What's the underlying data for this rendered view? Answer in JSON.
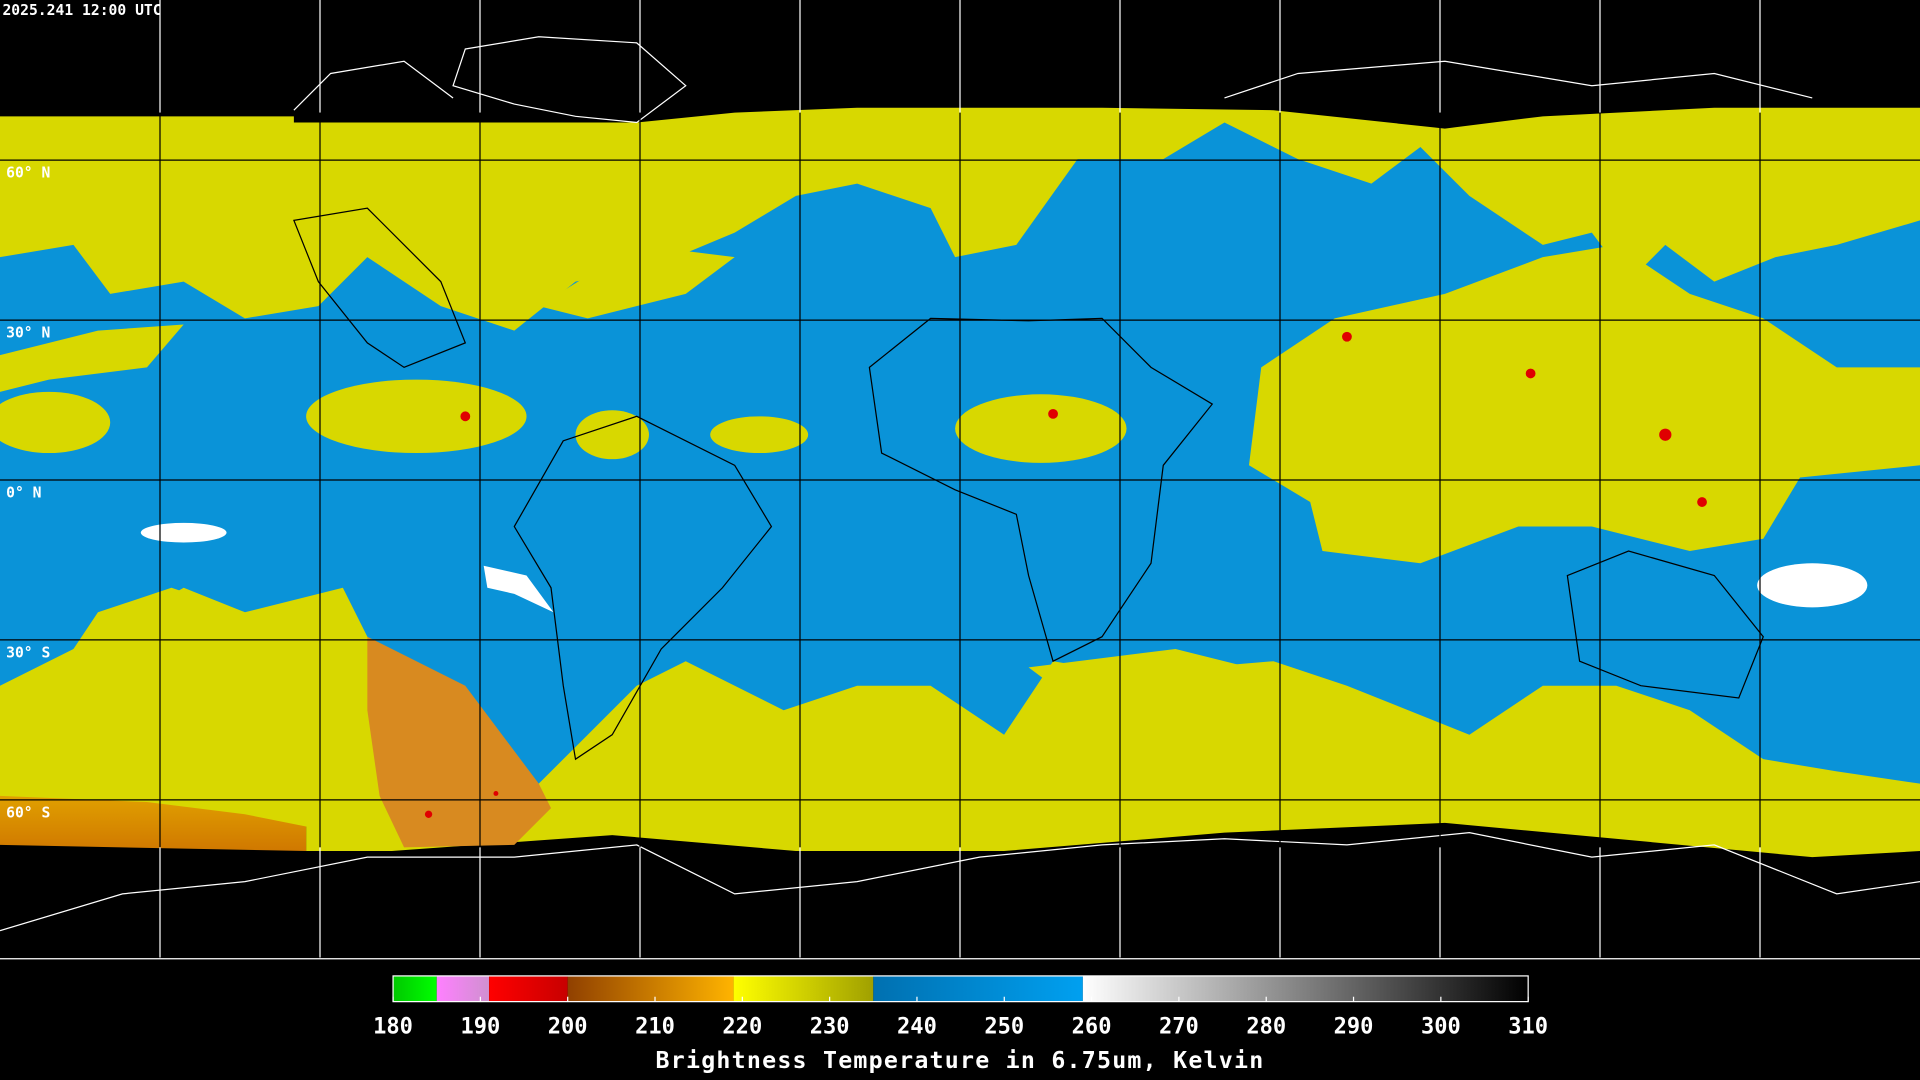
{
  "header": "2025.241 12:00 UTC",
  "latitude_labels": [
    "60° N",
    "30° N",
    "0° N",
    "30° S",
    "60° S"
  ],
  "colorbar": {
    "range": [
      180,
      310
    ],
    "ticks": [
      180,
      190,
      200,
      210,
      220,
      230,
      240,
      250,
      260,
      270,
      280,
      290,
      300,
      310
    ],
    "label": "Brightness Temperature in 6.75um, Kelvin",
    "segments": [
      {
        "from": 180,
        "to": 185,
        "colors": [
          "#00c800",
          "#00ff00"
        ]
      },
      {
        "from": 185,
        "to": 191,
        "colors": [
          "#ff80ff",
          "#d090d0"
        ]
      },
      {
        "from": 191,
        "to": 200,
        "colors": [
          "#ff0000",
          "#c80000"
        ]
      },
      {
        "from": 200,
        "to": 219,
        "colors": [
          "#904000",
          "#ffb400"
        ]
      },
      {
        "from": 219,
        "to": 235,
        "colors": [
          "#ffff00",
          "#a0a000"
        ]
      },
      {
        "from": 235,
        "to": 259,
        "colors": [
          "#0070b0",
          "#00a0f0"
        ]
      },
      {
        "from": 259,
        "to": 310,
        "colors": [
          "#ffffff",
          "#000000"
        ]
      }
    ]
  }
}
